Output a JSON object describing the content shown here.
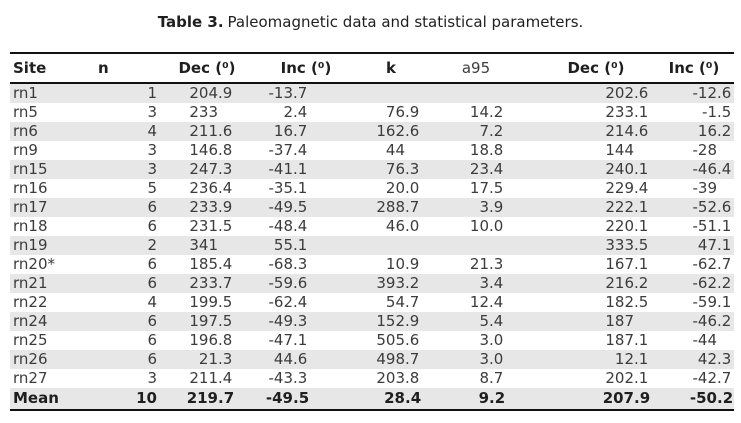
{
  "caption": {
    "label": "Table 3.",
    "text": "Paleomagnetic data and statistical parameters."
  },
  "table": {
    "columns": [
      {
        "key": "site",
        "label": "Site"
      },
      {
        "key": "n",
        "label": "n"
      },
      {
        "key": "dec1",
        "label": "Dec (⁰)"
      },
      {
        "key": "inc1",
        "label": "Inc (⁰)"
      },
      {
        "key": "k",
        "label": "k"
      },
      {
        "key": "a95",
        "label": "a95"
      },
      {
        "key": "dec2",
        "label": "Dec (⁰)"
      },
      {
        "key": "inc2",
        "label": "Inc (⁰)"
      }
    ],
    "rows": [
      {
        "site": "rn1",
        "n": "1",
        "dec1": "204.9",
        "inc1": "-13.7",
        "k": "",
        "a95": "",
        "dec2": "202.6",
        "inc2": "-12.6"
      },
      {
        "site": "rn5",
        "n": "3",
        "dec1": "233",
        "inc1": "2.4",
        "k": "76.9",
        "a95": "14.2",
        "dec2": "233.1",
        "inc2": "-1.5"
      },
      {
        "site": "rn6",
        "n": "4",
        "dec1": "211.6",
        "inc1": "16.7",
        "k": "162.6",
        "a95": "7.2",
        "dec2": "214.6",
        "inc2": "16.2"
      },
      {
        "site": "rn9",
        "n": "3",
        "dec1": "146.8",
        "inc1": "-37.4",
        "k": "44",
        "a95": "18.8",
        "dec2": "144",
        "inc2": "-28"
      },
      {
        "site": "rn15",
        "n": "3",
        "dec1": "247.3",
        "inc1": "-41.1",
        "k": "76.3",
        "a95": "23.4",
        "dec2": "240.1",
        "inc2": "-46.4"
      },
      {
        "site": "rn16",
        "n": "5",
        "dec1": "236.4",
        "inc1": "-35.1",
        "k": "20.0",
        "a95": "17.5",
        "dec2": "229.4",
        "inc2": "-39"
      },
      {
        "site": "rn17",
        "n": "6",
        "dec1": "233.9",
        "inc1": "-49.5",
        "k": "288.7",
        "a95": "3.9",
        "dec2": "222.1",
        "inc2": "-52.6"
      },
      {
        "site": "rn18",
        "n": "6",
        "dec1": "231.5",
        "inc1": "-48.4",
        "k": "46.0",
        "a95": "10.0",
        "dec2": "220.1",
        "inc2": "-51.1"
      },
      {
        "site": "rn19",
        "n": "2",
        "dec1": "341",
        "inc1": "55.1",
        "k": "",
        "a95": "",
        "dec2": "333.5",
        "inc2": "47.1"
      },
      {
        "site": "rn20*",
        "n": "6",
        "dec1": "185.4",
        "inc1": "-68.3",
        "k": "10.9",
        "a95": "21.3",
        "dec2": "167.1",
        "inc2": "-62.7"
      },
      {
        "site": "rn21",
        "n": "6",
        "dec1": "233.7",
        "inc1": "-59.6",
        "k": "393.2",
        "a95": "3.4",
        "dec2": "216.2",
        "inc2": "-62.2"
      },
      {
        "site": "rn22",
        "n": "4",
        "dec1": "199.5",
        "inc1": "-62.4",
        "k": "54.7",
        "a95": "12.4",
        "dec2": "182.5",
        "inc2": "-59.1"
      },
      {
        "site": "rn24",
        "n": "6",
        "dec1": "197.5",
        "inc1": "-49.3",
        "k": "152.9",
        "a95": "5.4",
        "dec2": "187",
        "inc2": "-46.2"
      },
      {
        "site": "rn25",
        "n": "6",
        "dec1": "196.8",
        "inc1": "-47.1",
        "k": "505.6",
        "a95": "3.0",
        "dec2": "187.1",
        "inc2": "-44"
      },
      {
        "site": "rn26",
        "n": "6",
        "dec1": "21.3",
        "inc1": "44.6",
        "k": "498.7",
        "a95": "3.0",
        "dec2": "12.1",
        "inc2": "42.3"
      },
      {
        "site": "rn27",
        "n": "3",
        "dec1": "211.4",
        "inc1": "-43.3",
        "k": "203.8",
        "a95": "8.7",
        "dec2": "202.1",
        "inc2": "-42.7"
      },
      {
        "site": "Mean",
        "n": "10",
        "dec1": "219.7",
        "inc1": "-49.5",
        "k": "28.4",
        "a95": "9.2",
        "dec2": "207.9",
        "inc2": "-50.2",
        "emphasis": true
      }
    ]
  },
  "colors": {
    "background": "#ffffff",
    "stripe": "#e7e7e7",
    "rule": "#111111",
    "text": "#3c3c3c",
    "heading": "#1f1f1f"
  }
}
